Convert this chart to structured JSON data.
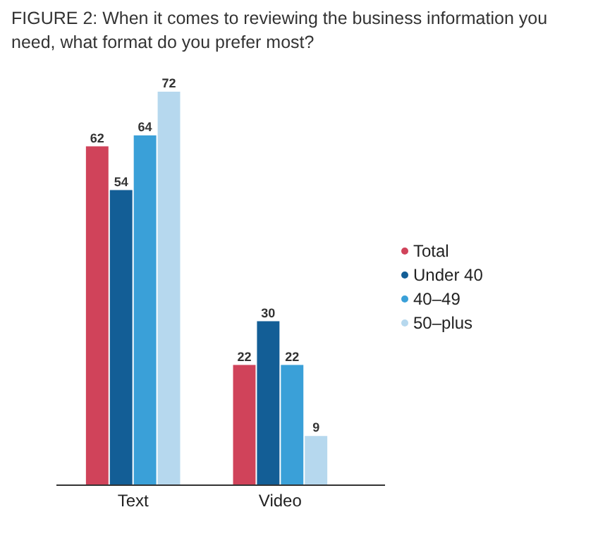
{
  "chart_data": {
    "type": "bar",
    "title": "FIGURE 2: When it comes to reviewing the business information you need, what format do you prefer most?",
    "categories": [
      "Text",
      "Video"
    ],
    "series": [
      {
        "name": "Total",
        "color": "#d0435a",
        "values": [
          62,
          22
        ]
      },
      {
        "name": "Under 40",
        "color": "#135e96",
        "values": [
          54,
          30
        ]
      },
      {
        "name": "40–49",
        "color": "#3aa0d8",
        "values": [
          64,
          22
        ]
      },
      {
        "name": "50–plus",
        "color": "#b6d8ee",
        "values": [
          72,
          9
        ]
      }
    ],
    "data_labels": true,
    "legend": "right",
    "grid": false
  }
}
